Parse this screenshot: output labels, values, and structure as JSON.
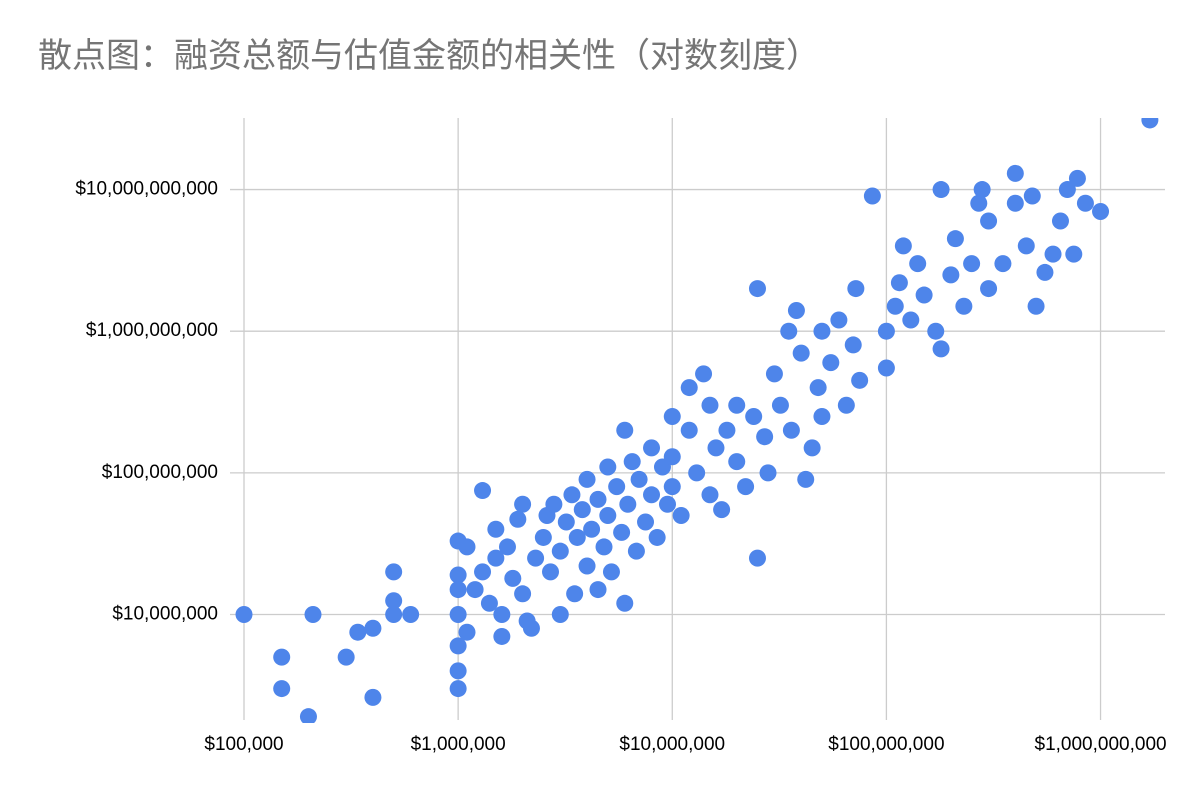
{
  "chart_data": {
    "type": "scatter",
    "title": "散点图：融资总额与估值金额的相关性（对数刻度）",
    "color": "#4e85ea",
    "log_x": true,
    "log_y": true,
    "grid": true,
    "xlim": [
      100000,
      2000000000
    ],
    "ylim": [
      1800000,
      32000000000
    ],
    "xticks": [
      {
        "value": 100000,
        "label": "$100,000"
      },
      {
        "value": 1000000,
        "label": "$1,000,000"
      },
      {
        "value": 10000000,
        "label": "$10,000,000"
      },
      {
        "value": 100000000,
        "label": "$100,000,000"
      },
      {
        "value": 1000000000,
        "label": "$1,000,000,000"
      }
    ],
    "yticks": [
      {
        "value": 10000000,
        "label": "$10,000,000"
      },
      {
        "value": 100000000,
        "label": "$100,000,000"
      },
      {
        "value": 1000000000,
        "label": "$1,000,000,000"
      },
      {
        "value": 10000000000,
        "label": "$10,000,000,000"
      }
    ],
    "x": [
      100000,
      150000,
      150000,
      200000,
      210000,
      300000,
      340000,
      400000,
      400000,
      500000,
      500000,
      500000,
      600000,
      1000000,
      1000000,
      1000000,
      1000000,
      1000000,
      1000000,
      1000000,
      1100000,
      1100000,
      1300000,
      1200000,
      1300000,
      1400000,
      1500000,
      1500000,
      1600000,
      1600000,
      1700000,
      1800000,
      1900000,
      2000000,
      2000000,
      2100000,
      2200000,
      2300000,
      2500000,
      2600000,
      2700000,
      2800000,
      3000000,
      3000000,
      3200000,
      3400000,
      3500000,
      3600000,
      3800000,
      4000000,
      4000000,
      4200000,
      4500000,
      4500000,
      4800000,
      5000000,
      5000000,
      5200000,
      5500000,
      5800000,
      6000000,
      6000000,
      6200000,
      6500000,
      6800000,
      7000000,
      7500000,
      8000000,
      8000000,
      8500000,
      9000000,
      9500000,
      10000000,
      10000000,
      10000000,
      11000000,
      12000000,
      12000000,
      13000000,
      14000000,
      15000000,
      15000000,
      16000000,
      17000000,
      18000000,
      20000000,
      20000000,
      22000000,
      24000000,
      25000000,
      25000000,
      27000000,
      28000000,
      30000000,
      32000000,
      35000000,
      36000000,
      38000000,
      40000000,
      42000000,
      45000000,
      48000000,
      50000000,
      50000000,
      55000000,
      60000000,
      65000000,
      70000000,
      72000000,
      75000000,
      86000000,
      100000000,
      100000000,
      110000000,
      115000000,
      120000000,
      130000000,
      140000000,
      150000000,
      170000000,
      180000000,
      180000000,
      200000000,
      210000000,
      230000000,
      250000000,
      270000000,
      280000000,
      300000000,
      300000000,
      350000000,
      400000000,
      400000000,
      450000000,
      480000000,
      500000000,
      550000000,
      600000000,
      650000000,
      700000000,
      750000000,
      780000000,
      850000000,
      1000000000,
      1700000000
    ],
    "values": [
      10000000,
      5000000,
      3000000,
      1900000,
      10000000,
      5000000,
      7500000,
      8000000,
      2600000,
      20000000,
      12500000,
      10000000,
      10000000,
      33000000,
      19000000,
      15000000,
      10000000,
      6000000,
      4000000,
      3000000,
      30000000,
      7500000,
      75000000,
      15000000,
      20000000,
      12000000,
      40000000,
      25000000,
      10000000,
      7000000,
      30000000,
      18000000,
      47000000,
      60000000,
      14000000,
      9000000,
      8000000,
      25000000,
      35000000,
      50000000,
      20000000,
      60000000,
      10000000,
      28000000,
      45000000,
      70000000,
      14000000,
      35000000,
      55000000,
      22000000,
      90000000,
      40000000,
      15000000,
      65000000,
      30000000,
      110000000,
      50000000,
      20000000,
      80000000,
      38000000,
      12000000,
      200000000,
      60000000,
      120000000,
      28000000,
      90000000,
      45000000,
      150000000,
      70000000,
      35000000,
      110000000,
      60000000,
      250000000,
      130000000,
      80000000,
      50000000,
      200000000,
      400000000,
      100000000,
      500000000,
      300000000,
      70000000,
      150000000,
      55000000,
      200000000,
      120000000,
      300000000,
      80000000,
      250000000,
      2000000000,
      25000000,
      180000000,
      100000000,
      500000000,
      300000000,
      1000000000,
      200000000,
      1400000000,
      700000000,
      90000000,
      150000000,
      400000000,
      1000000000,
      250000000,
      600000000,
      1200000000,
      300000000,
      800000000,
      2000000000,
      450000000,
      9000000000,
      1000000000,
      550000000,
      1500000000,
      2200000000,
      4000000000,
      1200000000,
      3000000000,
      1800000000,
      1000000000,
      10000000000,
      750000000,
      2500000000,
      4500000000,
      1500000000,
      3000000000,
      8000000000,
      10000000000,
      2000000000,
      6000000000,
      3000000000,
      13000000000,
      8000000000,
      4000000000,
      9000000000,
      1500000000,
      2600000000,
      3500000000,
      6000000000,
      10000000000,
      3500000000,
      12000000000,
      8000000000,
      7000000000,
      31000000000
    ]
  }
}
